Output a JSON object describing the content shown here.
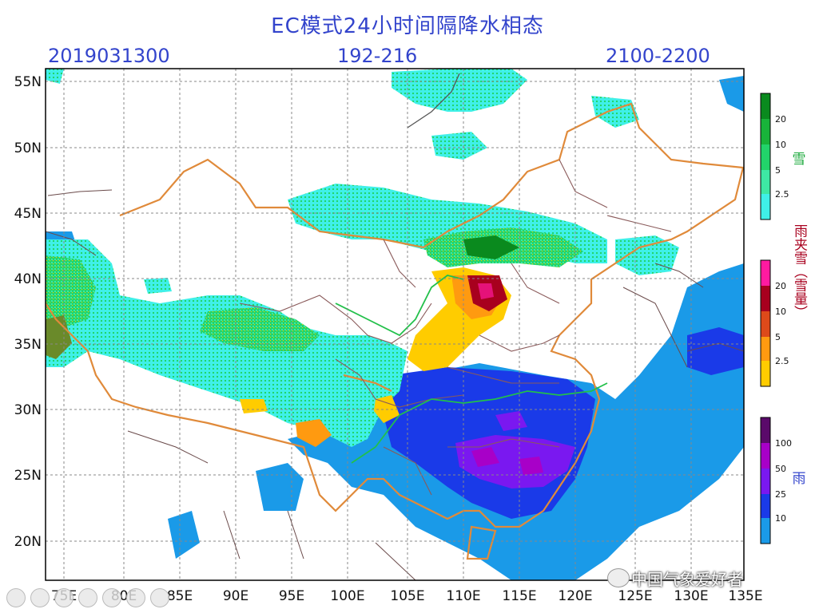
{
  "title": "EC模式24小时间隔降水相态",
  "subtitle_left": "2019031300",
  "subtitle_mid": "192-216",
  "subtitle_right": "2100-2200",
  "lon_ticks": [
    "75E",
    "80E",
    "85E",
    "90E",
    "95E",
    "100E",
    "105E",
    "110E",
    "115E",
    "120E",
    "125E",
    "130E",
    "135E"
  ],
  "lat_ticks": [
    "55N",
    "50N",
    "45N",
    "40N",
    "35N",
    "30N",
    "25N",
    "20N"
  ],
  "legend_snow": {
    "title": "雪",
    "labels": [
      "20",
      "10",
      "5",
      "2.5"
    ],
    "colors": [
      "#0a8a1e",
      "#18b43a",
      "#22d46a",
      "#3ee8a4",
      "#3ff0e8"
    ]
  },
  "legend_mix": {
    "title": "雨夹雪（雪量）",
    "labels": [
      "20",
      "10",
      "5",
      "2.5"
    ],
    "colors": [
      "#ff1aa0",
      "#a8001e",
      "#dd4a1a",
      "#ff9a10",
      "#ffcc00"
    ]
  },
  "legend_rain": {
    "title": "雨",
    "labels": [
      "100",
      "50",
      "25",
      "10"
    ],
    "colors": [
      "#5a0a6a",
      "#a800c8",
      "#7a18f0",
      "#1a3ae8",
      "#1a9ae8"
    ]
  },
  "watermark": "中国气象爱好者"
}
